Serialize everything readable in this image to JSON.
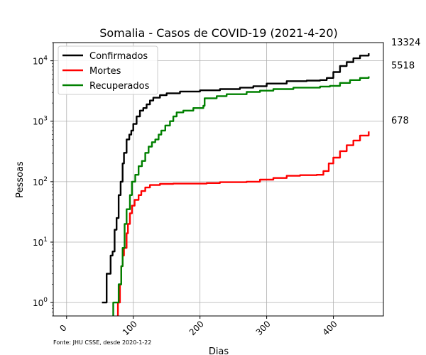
{
  "chart_data": {
    "type": "line",
    "title": "Somalia - Casos de COVID-19 (2021-4-20)",
    "xlabel": "Dias",
    "ylabel": "Pessoas",
    "source_note": "Fonte: JHU CSSE, desde 2020-1-22",
    "xlim": [
      -20,
      475
    ],
    "ylim": [
      0.6,
      20000
    ],
    "yscale": "log",
    "x_ticks": [
      0,
      100,
      200,
      300,
      400
    ],
    "y_ticks": [
      {
        "value": 1,
        "base": "10",
        "exp": "0"
      },
      {
        "value": 10,
        "base": "10",
        "exp": "1"
      },
      {
        "value": 100,
        "base": "10",
        "exp": "2"
      },
      {
        "value": 1000,
        "base": "10",
        "exp": "3"
      },
      {
        "value": 10000,
        "base": "10",
        "exp": "4"
      }
    ],
    "grid": true,
    "legend_position": "top-left",
    "series": [
      {
        "name": "Confirmados",
        "color": "#000000",
        "final_label": "13324",
        "points": [
          [
            53,
            1
          ],
          [
            57,
            1
          ],
          [
            60,
            3
          ],
          [
            63,
            3
          ],
          [
            66,
            6
          ],
          [
            69,
            7
          ],
          [
            72,
            16
          ],
          [
            75,
            25
          ],
          [
            78,
            60
          ],
          [
            81,
            100
          ],
          [
            84,
            200
          ],
          [
            86,
            300
          ],
          [
            90,
            500
          ],
          [
            94,
            600
          ],
          [
            97,
            700
          ],
          [
            100,
            900
          ],
          [
            105,
            1200
          ],
          [
            110,
            1500
          ],
          [
            115,
            1650
          ],
          [
            120,
            1900
          ],
          [
            125,
            2200
          ],
          [
            130,
            2450
          ],
          [
            140,
            2700
          ],
          [
            150,
            2900
          ],
          [
            170,
            3100
          ],
          [
            200,
            3250
          ],
          [
            230,
            3400
          ],
          [
            260,
            3600
          ],
          [
            280,
            3800
          ],
          [
            300,
            4200
          ],
          [
            330,
            4600
          ],
          [
            360,
            4700
          ],
          [
            380,
            4800
          ],
          [
            390,
            5200
          ],
          [
            400,
            6500
          ],
          [
            410,
            8200
          ],
          [
            420,
            9500
          ],
          [
            430,
            11000
          ],
          [
            440,
            12200
          ],
          [
            453,
            13324
          ]
        ]
      },
      {
        "name": "Mortes",
        "color": "#ff0000",
        "final_label": "678",
        "points": [
          [
            76,
            0.6
          ],
          [
            77,
            1
          ],
          [
            80,
            2
          ],
          [
            82,
            4
          ],
          [
            84,
            6
          ],
          [
            86,
            8
          ],
          [
            90,
            14
          ],
          [
            92,
            20
          ],
          [
            95,
            30
          ],
          [
            98,
            40
          ],
          [
            102,
            50
          ],
          [
            108,
            60
          ],
          [
            112,
            70
          ],
          [
            118,
            80
          ],
          [
            125,
            88
          ],
          [
            140,
            92
          ],
          [
            160,
            93
          ],
          [
            190,
            93
          ],
          [
            210,
            95
          ],
          [
            230,
            98
          ],
          [
            270,
            100
          ],
          [
            290,
            108
          ],
          [
            310,
            115
          ],
          [
            330,
            125
          ],
          [
            350,
            128
          ],
          [
            375,
            130
          ],
          [
            385,
            150
          ],
          [
            393,
            200
          ],
          [
            400,
            250
          ],
          [
            410,
            320
          ],
          [
            420,
            400
          ],
          [
            430,
            480
          ],
          [
            440,
            580
          ],
          [
            453,
            678
          ]
        ]
      },
      {
        "name": "Recuperados",
        "color": "#008000",
        "final_label": "5518",
        "points": [
          [
            69,
            0.6
          ],
          [
            70,
            1
          ],
          [
            76,
            1
          ],
          [
            78,
            2
          ],
          [
            82,
            4
          ],
          [
            84,
            8
          ],
          [
            87,
            20
          ],
          [
            90,
            35
          ],
          [
            95,
            60
          ],
          [
            98,
            100
          ],
          [
            103,
            130
          ],
          [
            108,
            180
          ],
          [
            113,
            220
          ],
          [
            118,
            300
          ],
          [
            123,
            380
          ],
          [
            128,
            450
          ],
          [
            133,
            500
          ],
          [
            138,
            600
          ],
          [
            142,
            700
          ],
          [
            148,
            850
          ],
          [
            155,
            1000
          ],
          [
            160,
            1200
          ],
          [
            165,
            1400
          ],
          [
            175,
            1500
          ],
          [
            190,
            1650
          ],
          [
            205,
            1800
          ],
          [
            207,
            2400
          ],
          [
            225,
            2600
          ],
          [
            240,
            2800
          ],
          [
            270,
            3050
          ],
          [
            290,
            3200
          ],
          [
            310,
            3400
          ],
          [
            340,
            3600
          ],
          [
            380,
            3750
          ],
          [
            395,
            3850
          ],
          [
            410,
            4300
          ],
          [
            425,
            4800
          ],
          [
            440,
            5200
          ],
          [
            453,
            5518
          ]
        ]
      }
    ]
  }
}
